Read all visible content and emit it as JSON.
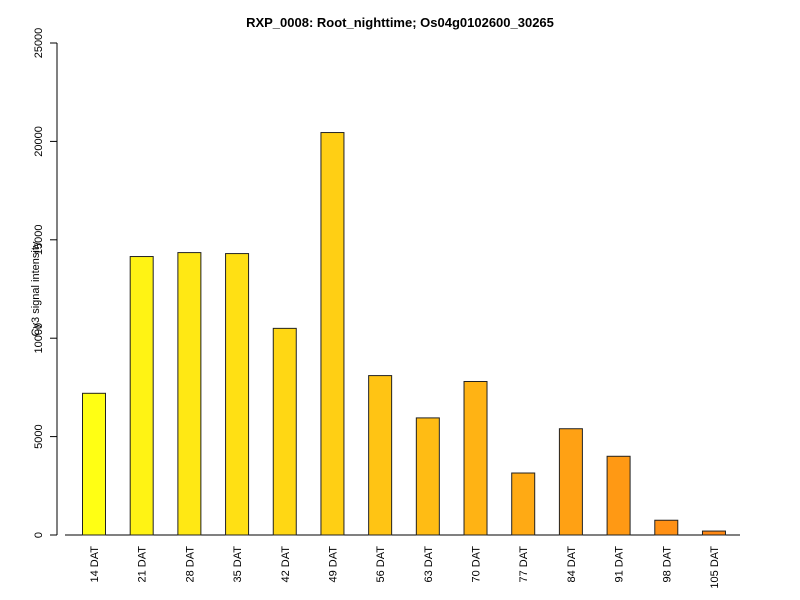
{
  "chart_data": {
    "type": "bar",
    "title": "RXP_0008: Root_nighttime; Os04g0102600_30265",
    "ylabel": "Cy3 signal intensity",
    "xlabel": "",
    "ylim": [
      0,
      25000
    ],
    "yticks": [
      0,
      5000,
      10000,
      15000,
      20000,
      25000
    ],
    "grid": false,
    "categories": [
      "14 DAT",
      "21 DAT",
      "28 DAT",
      "35 DAT",
      "42 DAT",
      "49 DAT",
      "56 DAT",
      "63 DAT",
      "70 DAT",
      "77 DAT",
      "84 DAT",
      "91 DAT",
      "98 DAT",
      "105 DAT"
    ],
    "values": [
      7200,
      14150,
      14350,
      14300,
      10500,
      20450,
      8100,
      5950,
      7800,
      3150,
      5400,
      4000,
      750,
      200
    ],
    "colors": [
      "#ffff14",
      "#fff314",
      "#ffe814",
      "#ffe014",
      "#ffd714",
      "#ffcf14",
      "#ffc414",
      "#ffbc14",
      "#ffb314",
      "#ffaa14",
      "#ffa114",
      "#ff9914",
      "#ff9014",
      "#ff8814"
    ]
  }
}
